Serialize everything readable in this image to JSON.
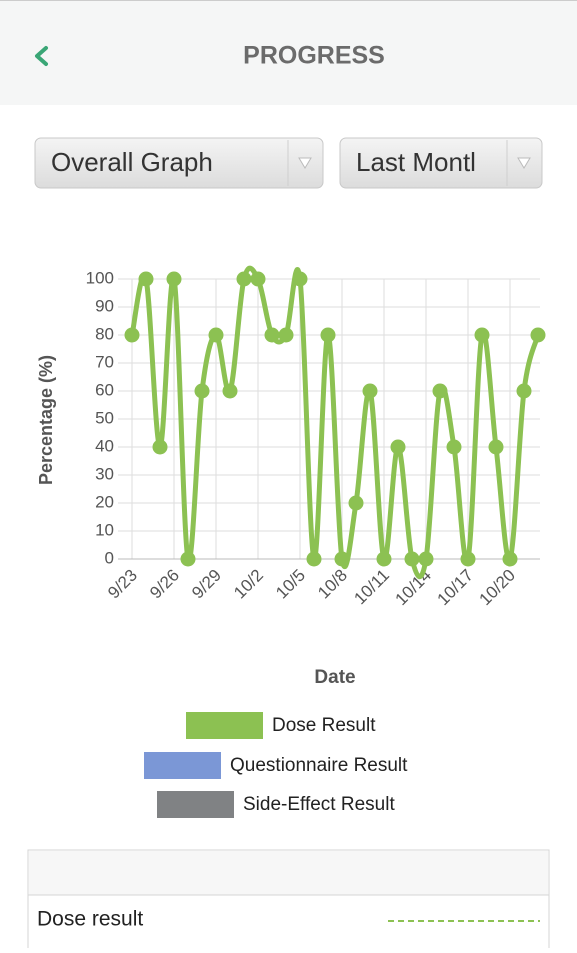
{
  "header": {
    "title": "PROGRESS"
  },
  "filters": [
    {
      "label": "Overall Graph"
    },
    {
      "label": "Last Montl"
    }
  ],
  "chart_data": {
    "type": "line",
    "ylabel": "Percentage (%)",
    "xlabel": "Date",
    "categories": [
      "9/23",
      null,
      null,
      "9/26",
      null,
      null,
      "9/29",
      null,
      null,
      "10/2",
      null,
      null,
      "10/5",
      null,
      null,
      "10/8",
      null,
      null,
      "10/11",
      null,
      null,
      "10/14",
      null,
      null,
      "10/17",
      null,
      null,
      "10/20",
      null,
      null
    ],
    "series": [
      {
        "name": "Dose Result",
        "color": "#8cc152",
        "values": [
          80,
          100,
          40,
          100,
          0,
          60,
          80,
          60,
          100,
          100,
          80,
          80,
          100,
          0,
          80,
          0,
          20,
          60,
          0,
          40,
          0,
          0,
          60,
          40,
          0,
          80,
          40,
          0,
          60,
          80
        ]
      }
    ],
    "legend": [
      {
        "name": "Dose Result",
        "color": "#8cc152"
      },
      {
        "name": "Questionnaire Result",
        "color": "#7b97d6"
      },
      {
        "name": "Side-Effect Result",
        "color": "#808284"
      }
    ],
    "ylim": [
      0,
      100
    ],
    "yticks": [
      0,
      10,
      20,
      30,
      40,
      50,
      60,
      70,
      80,
      90,
      100
    ],
    "grid": true
  },
  "table": {
    "rows": [
      {
        "label": "Dose result"
      }
    ]
  }
}
